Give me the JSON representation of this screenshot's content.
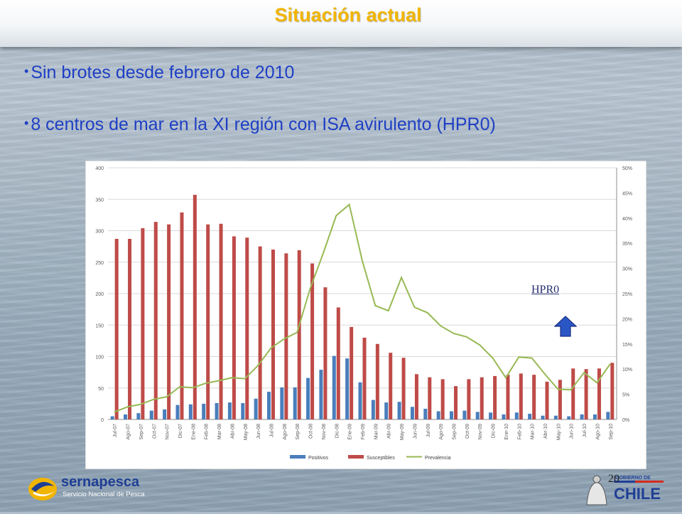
{
  "slide": {
    "title": "Situación actual",
    "bullets": [
      "Sin brotes desde febrero de 2010",
      "8 centros de mar en la XI región con ISA avirulento (HPR0)"
    ],
    "annotation": "HPR0",
    "page_number": "20"
  },
  "logos": {
    "sernapesca_name": "sernapesca",
    "sernapesca_subtitle": "Servicio Nacional de Pesca",
    "gov_line": "GOBIERNO DE",
    "gov_country": "CHILE"
  },
  "colors": {
    "title": "#f1b500",
    "bullet_text": "#1f3fc4",
    "positivos": "#4a7ebb",
    "susceptibles": "#be4b48",
    "prevalencia": "#98b954"
  },
  "chart_data": {
    "type": "bar",
    "categories": [
      "Jul-07",
      "Ago-07",
      "Sep-07",
      "Oct-07",
      "Nov-07",
      "Dic-07",
      "Ene-08",
      "Feb-08",
      "Mar-08",
      "Abr-08",
      "May-08",
      "Jun-08",
      "Jul-08",
      "Ago-08",
      "Sep-08",
      "Oct-08",
      "Nov-08",
      "Dic-08",
      "Ene-09",
      "Feb-09",
      "Mar-09",
      "Abr-09",
      "May-09",
      "Jun-09",
      "Jul-09",
      "Ago-09",
      "Sep-09",
      "Oct-09",
      "Nov-09",
      "Dic-09",
      "Ene-10",
      "Feb-10",
      "Mar-10",
      "Abr-10",
      "May-10",
      "Jun-10",
      "Jul-10",
      "Ago-10",
      "Sep-10"
    ],
    "series": [
      {
        "name": "Positivos",
        "axis": "left",
        "type": "bar",
        "values": [
          5,
          8,
          10,
          14,
          16,
          23,
          24,
          25,
          26,
          27,
          26,
          33,
          44,
          51,
          51,
          66,
          79,
          101,
          97,
          59,
          31,
          27,
          28,
          20,
          17,
          13,
          13,
          14,
          12,
          11,
          8,
          11,
          9,
          6,
          6,
          5,
          8,
          8,
          12
        ]
      },
      {
        "name": "Susceptibles",
        "axis": "left",
        "type": "bar",
        "values": [
          287,
          287,
          304,
          314,
          310,
          329,
          357,
          310,
          311,
          291,
          289,
          275,
          270,
          264,
          269,
          248,
          210,
          178,
          147,
          130,
          120,
          106,
          98,
          72,
          67,
          64,
          53,
          64,
          67,
          69,
          71,
          73,
          71,
          60,
          63,
          81,
          80,
          81,
          90
        ]
      },
      {
        "name": "Prevalencia",
        "axis": "right",
        "type": "line",
        "values": [
          1.5,
          2.5,
          3,
          4,
          4.5,
          6.5,
          6.3,
          7.2,
          7.7,
          8.3,
          8.1,
          10.7,
          14.2,
          16,
          17.3,
          26,
          33,
          40.5,
          42.7,
          31.5,
          22.6,
          21.6,
          28.2,
          22.3,
          21.2,
          18.6,
          17.1,
          16.4,
          14.8,
          12.2,
          8.3,
          12.4,
          12.2,
          9,
          6,
          5.9,
          9.3,
          7.3,
          11
        ]
      }
    ],
    "yaxis_left": {
      "min": 0,
      "max": 400,
      "ticks": [
        0,
        50,
        100,
        150,
        200,
        250,
        300,
        350,
        400
      ]
    },
    "yaxis_right": {
      "min": 0,
      "max": 50,
      "ticks": [
        "0%",
        "5%",
        "10%",
        "15%",
        "20%",
        "25%",
        "30%",
        "35%",
        "40%",
        "45%",
        "50%"
      ]
    },
    "grid": true,
    "legend_position": "bottom"
  }
}
